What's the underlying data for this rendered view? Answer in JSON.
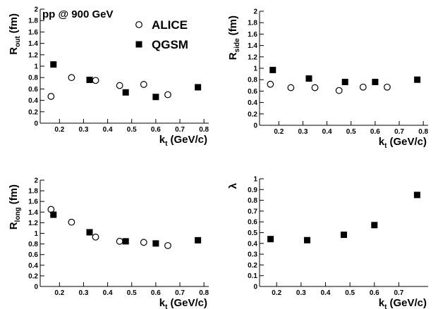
{
  "chart_data": [
    {
      "type": "scatter",
      "annotation": "pp @ 900 GeV",
      "legend": "upper right",
      "xlabel": {
        "main": "k",
        "sub": "t",
        "unit": "(GeV/c)"
      },
      "ylabel": {
        "main": "R",
        "sub": "out",
        "unit": "(fm)"
      },
      "xlim": [
        0.12,
        0.82
      ],
      "xticks": [
        0.2,
        0.3,
        0.4,
        0.5,
        0.6,
        0.7,
        0.8
      ],
      "ylim": [
        0,
        2
      ],
      "yticks": [
        0,
        0.2,
        0.4,
        0.6,
        0.8,
        1,
        1.2,
        1.4,
        1.6,
        1.8,
        2
      ],
      "series": [
        {
          "name": "ALICE",
          "marker": "open-circle",
          "color": "#000000",
          "x": [
            0.165,
            0.25,
            0.35,
            0.45,
            0.55,
            0.65
          ],
          "y": [
            0.47,
            0.8,
            0.75,
            0.66,
            0.68,
            0.5
          ]
        },
        {
          "name": "QGSM",
          "marker": "square",
          "color": "#000000",
          "x": [
            0.175,
            0.325,
            0.475,
            0.6,
            0.775
          ],
          "y": [
            1.03,
            0.76,
            0.54,
            0.46,
            0.63
          ]
        }
      ]
    },
    {
      "type": "scatter",
      "xlabel": {
        "main": "k",
        "sub": "t",
        "unit": "(GeV/c)"
      },
      "ylabel": {
        "main": "R",
        "sub": "side",
        "unit": "(fm)"
      },
      "xlim": [
        0.12,
        0.82
      ],
      "xticks": [
        0.2,
        0.3,
        0.4,
        0.5,
        0.6,
        0.7,
        0.8
      ],
      "ylim": [
        0,
        2
      ],
      "yticks": [
        0,
        0.2,
        0.4,
        0.6,
        0.8,
        1,
        1.2,
        1.4,
        1.6,
        1.8,
        2
      ],
      "series": [
        {
          "marker": "open-circle",
          "color": "#000000",
          "x": [
            0.165,
            0.25,
            0.35,
            0.45,
            0.55,
            0.65
          ],
          "y": [
            0.72,
            0.66,
            0.66,
            0.61,
            0.67,
            0.67
          ]
        },
        {
          "marker": "square",
          "color": "#000000",
          "x": [
            0.175,
            0.325,
            0.475,
            0.6,
            0.775
          ],
          "y": [
            0.97,
            0.82,
            0.76,
            0.76,
            0.8
          ]
        }
      ]
    },
    {
      "type": "scatter",
      "xlabel": {
        "main": "k",
        "sub": "t",
        "unit": "(GeV/c)"
      },
      "ylabel": {
        "main": "R",
        "sub": "long",
        "unit": "(fm)"
      },
      "xlim": [
        0.12,
        0.82
      ],
      "xticks": [
        0.2,
        0.3,
        0.4,
        0.5,
        0.6,
        0.7,
        0.8
      ],
      "ylim": [
        0,
        2
      ],
      "yticks": [
        0,
        0.2,
        0.4,
        0.6,
        0.8,
        1,
        1.2,
        1.4,
        1.6,
        1.8,
        2
      ],
      "series": [
        {
          "marker": "open-circle",
          "color": "#000000",
          "x": [
            0.165,
            0.25,
            0.35,
            0.45,
            0.55,
            0.65
          ],
          "y": [
            1.45,
            1.21,
            0.93,
            0.85,
            0.83,
            0.77
          ]
        },
        {
          "marker": "square",
          "color": "#000000",
          "x": [
            0.175,
            0.325,
            0.475,
            0.6,
            0.775
          ],
          "y": [
            1.35,
            1.02,
            0.85,
            0.81,
            0.87
          ]
        }
      ]
    },
    {
      "type": "scatter",
      "xlabel": {
        "main": "k",
        "sub": "t",
        "unit": "(GeV/c)"
      },
      "ylabel": {
        "main": "λ"
      },
      "xlim": [
        0.13,
        0.82
      ],
      "xticks": [
        0.2,
        0.3,
        0.4,
        0.5,
        0.6,
        0.7
      ],
      "ylim": [
        0,
        1
      ],
      "yticks": [
        0,
        0.1,
        0.2,
        0.3,
        0.4,
        0.5,
        0.6,
        0.7,
        0.8,
        0.9,
        1
      ],
      "series": [
        {
          "marker": "square",
          "color": "#000000",
          "x": [
            0.175,
            0.325,
            0.475,
            0.6,
            0.775
          ],
          "y": [
            0.44,
            0.43,
            0.48,
            0.57,
            0.85
          ]
        }
      ]
    }
  ]
}
